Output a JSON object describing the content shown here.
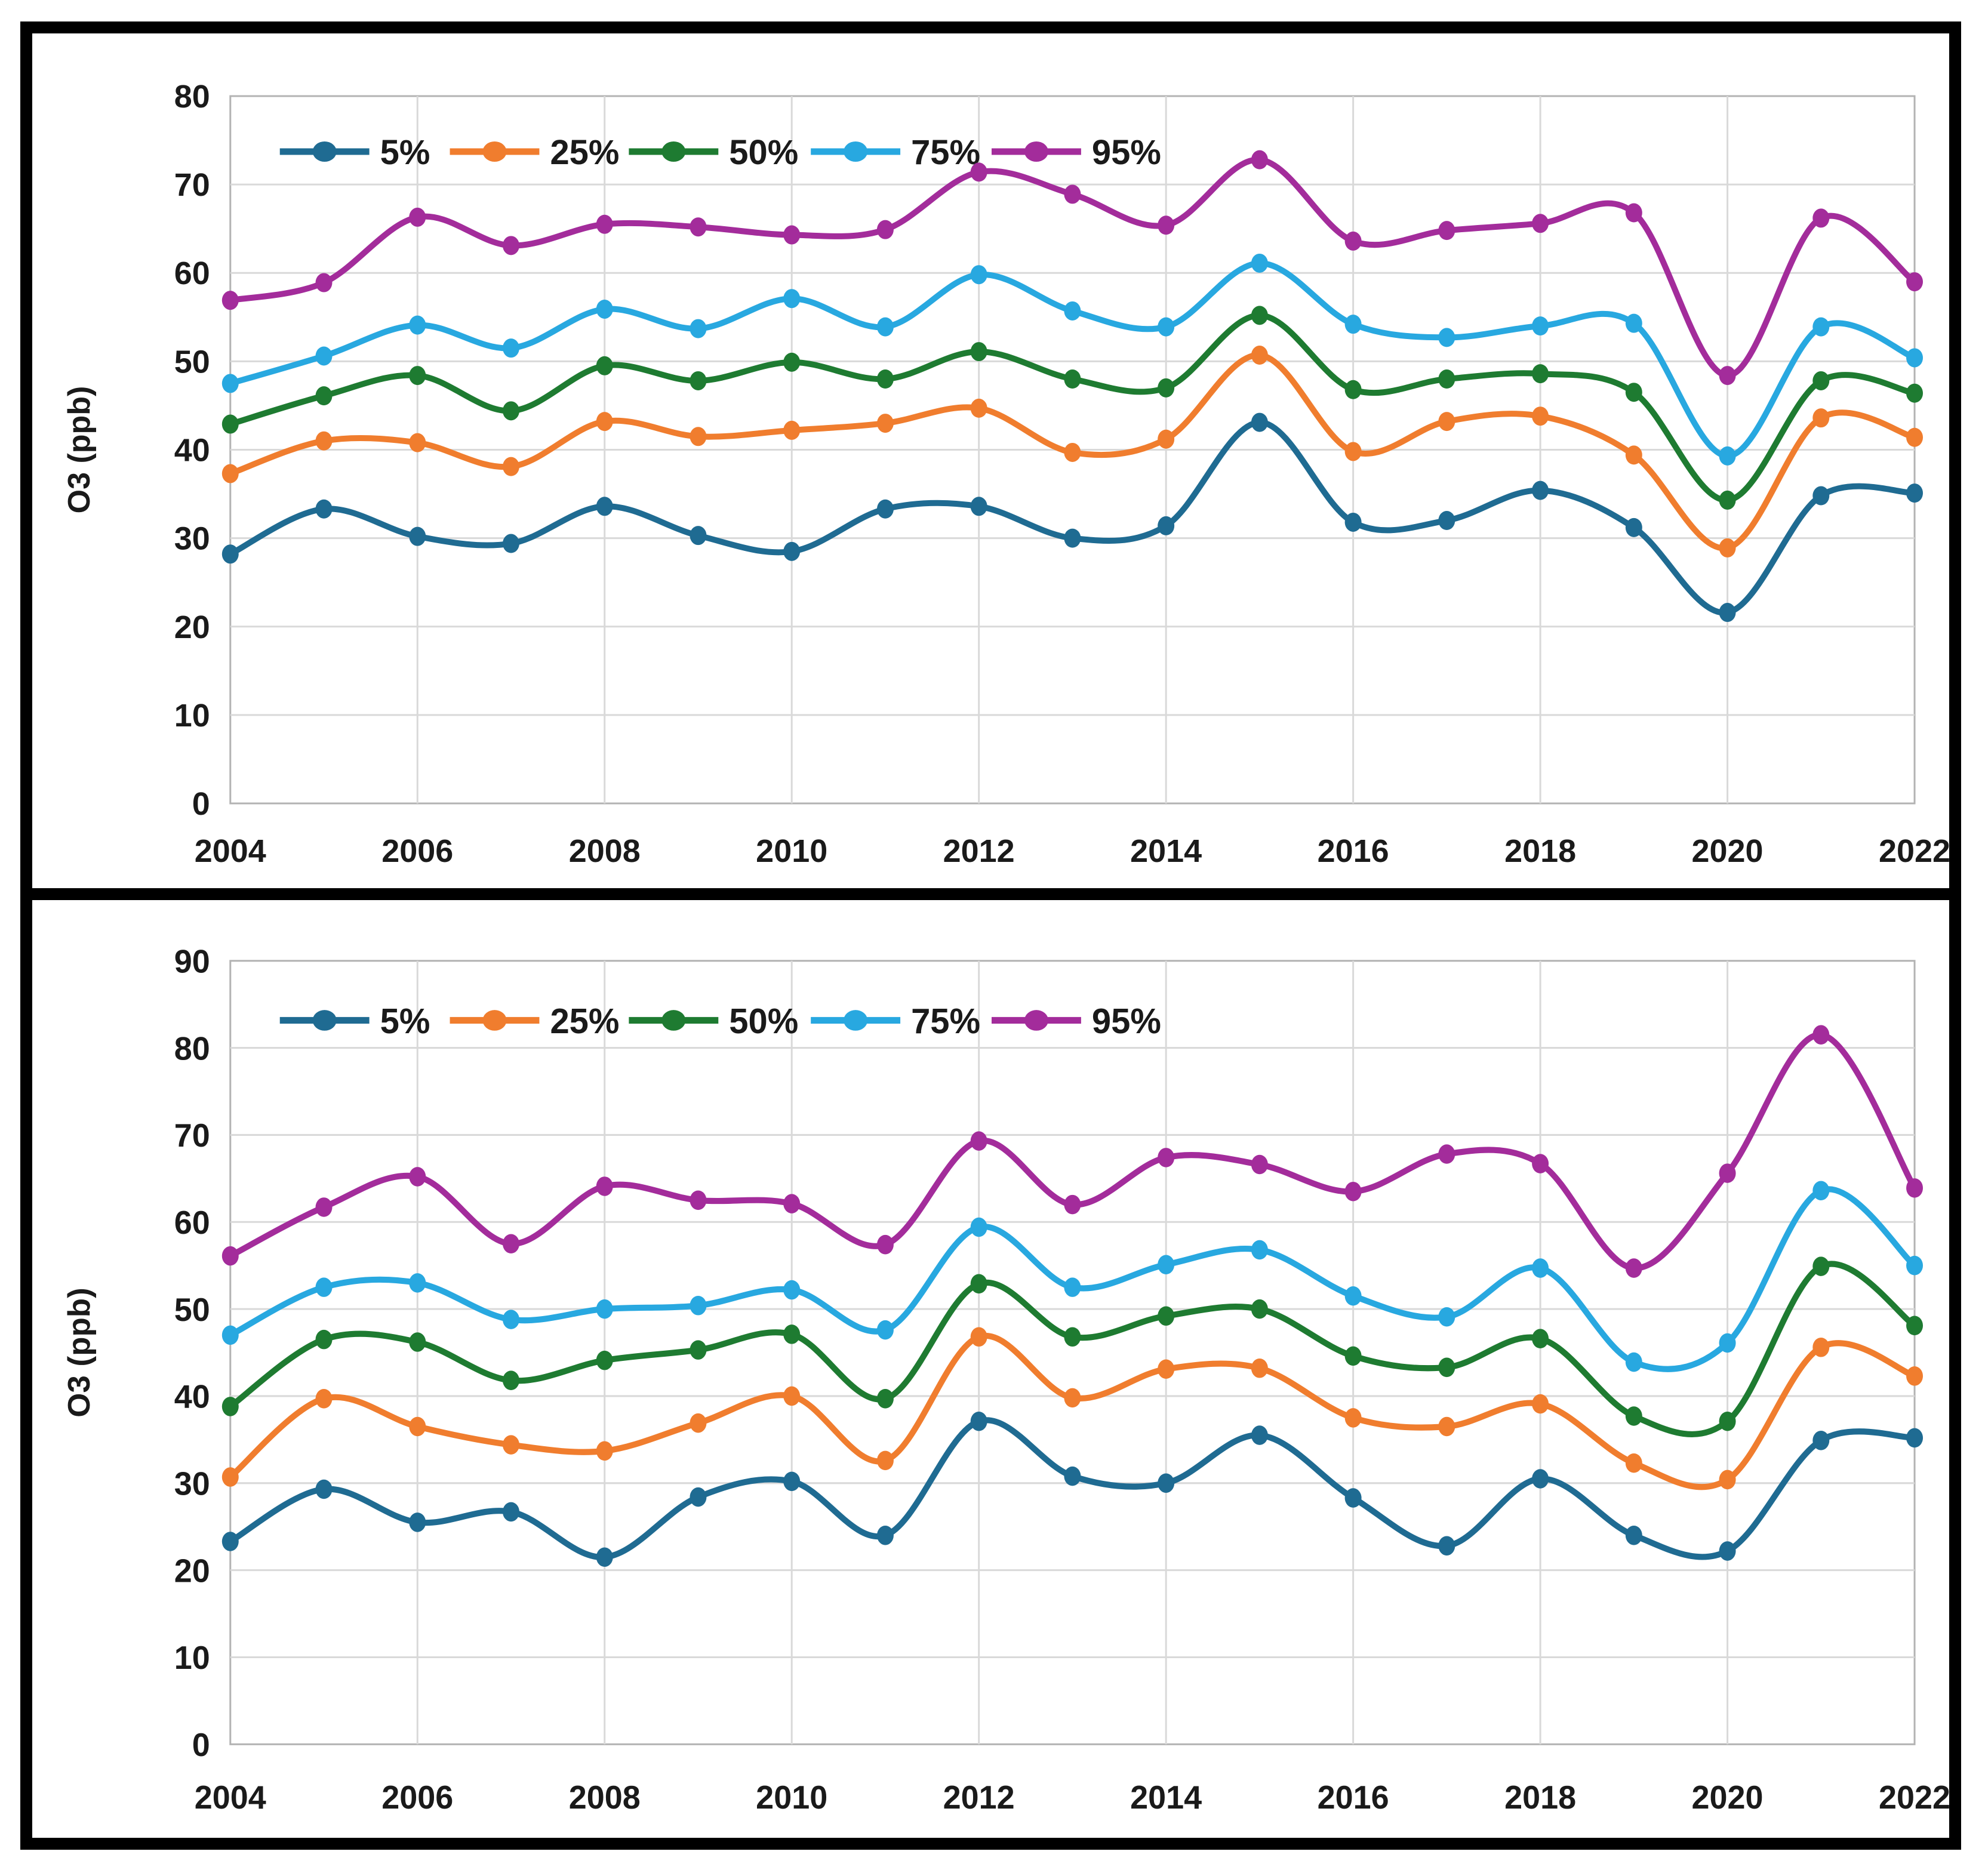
{
  "frame": {
    "border_color": "#000000",
    "background": "#ffffff",
    "gridline_color": "#d9d9d9",
    "plot_border_color": "#b3b3b3",
    "text_color": "#1a1a1a"
  },
  "chart_data": [
    {
      "id": "top",
      "type": "line",
      "title": "",
      "xlabel": "",
      "ylabel": "O3 (ppb)",
      "ylim": [
        0,
        80
      ],
      "ytick_step": 10,
      "yticks": [
        0,
        10,
        20,
        30,
        40,
        50,
        60,
        70,
        80
      ],
      "grid": true,
      "legend_position": "top-left",
      "legend": [
        "5%",
        "25%",
        "50%",
        "75%",
        "95%"
      ],
      "x": [
        2004,
        2005,
        2006,
        2007,
        2008,
        2009,
        2010,
        2011,
        2012,
        2013,
        2014,
        2015,
        2016,
        2017,
        2018,
        2019,
        2020,
        2021,
        2022
      ],
      "xticks": [
        2004,
        2006,
        2008,
        2010,
        2012,
        2014,
        2016,
        2018,
        2020,
        2022
      ],
      "series": [
        {
          "name": "5%",
          "color": "#1F6B92",
          "values": [
            28.2,
            33.3,
            30.2,
            29.4,
            33.6,
            30.3,
            28.5,
            33.3,
            33.6,
            30.0,
            31.4,
            43.1,
            31.8,
            32.0,
            35.4,
            31.2,
            21.6,
            34.8,
            35.1
          ]
        },
        {
          "name": "25%",
          "color": "#F07D2E",
          "values": [
            37.3,
            41.0,
            40.8,
            38.1,
            43.2,
            41.5,
            42.2,
            43.0,
            44.7,
            39.7,
            41.2,
            50.7,
            39.8,
            43.2,
            43.8,
            39.4,
            28.9,
            43.6,
            41.4
          ]
        },
        {
          "name": "50%",
          "color": "#1E7B31",
          "values": [
            42.9,
            46.1,
            48.4,
            44.4,
            49.5,
            47.8,
            49.9,
            48.0,
            51.1,
            48.0,
            47.0,
            55.2,
            46.8,
            48.0,
            48.6,
            46.5,
            34.3,
            47.8,
            46.4
          ]
        },
        {
          "name": "75%",
          "color": "#28A8E0",
          "values": [
            47.5,
            50.6,
            54.1,
            51.5,
            55.9,
            53.7,
            57.1,
            53.9,
            59.8,
            55.7,
            53.9,
            61.1,
            54.2,
            52.7,
            54.0,
            54.3,
            39.3,
            53.9,
            50.4
          ]
        },
        {
          "name": "95%",
          "color": "#A32C9B",
          "values": [
            56.9,
            58.9,
            66.3,
            63.1,
            65.5,
            65.2,
            64.3,
            64.9,
            71.4,
            68.9,
            65.4,
            72.8,
            63.6,
            64.8,
            65.6,
            66.8,
            48.4,
            66.2,
            59.0
          ]
        }
      ]
    },
    {
      "id": "bottom",
      "type": "line",
      "title": "",
      "xlabel": "",
      "ylabel": "O3 (ppb)",
      "ylim": [
        0,
        90
      ],
      "ytick_step": 10,
      "yticks": [
        0,
        10,
        20,
        30,
        40,
        50,
        60,
        70,
        80,
        90
      ],
      "grid": true,
      "legend_position": "top-left",
      "legend": [
        "5%",
        "25%",
        "50%",
        "75%",
        "95%"
      ],
      "x": [
        2004,
        2005,
        2006,
        2007,
        2008,
        2009,
        2010,
        2011,
        2012,
        2013,
        2014,
        2015,
        2016,
        2017,
        2018,
        2019,
        2020,
        2021,
        2022
      ],
      "xticks": [
        2004,
        2006,
        2008,
        2010,
        2012,
        2014,
        2016,
        2018,
        2020,
        2022
      ],
      "series": [
        {
          "name": "5%",
          "color": "#1F6B92",
          "values": [
            23.3,
            29.3,
            25.5,
            26.7,
            21.5,
            28.4,
            30.2,
            24.0,
            37.1,
            30.8,
            30.0,
            35.5,
            28.3,
            22.8,
            30.5,
            24.0,
            22.2,
            34.9,
            35.2
          ]
        },
        {
          "name": "25%",
          "color": "#F07D2E",
          "values": [
            30.7,
            39.7,
            36.5,
            34.4,
            33.7,
            36.9,
            40.0,
            32.6,
            46.8,
            39.8,
            43.1,
            43.2,
            37.5,
            36.5,
            39.1,
            32.3,
            30.4,
            45.6,
            42.3
          ]
        },
        {
          "name": "50%",
          "color": "#1E7B31",
          "values": [
            38.8,
            46.5,
            46.2,
            41.8,
            44.1,
            45.3,
            47.1,
            39.7,
            52.9,
            46.8,
            49.2,
            50.0,
            44.6,
            43.3,
            46.6,
            37.7,
            37.1,
            54.9,
            48.1
          ]
        },
        {
          "name": "75%",
          "color": "#28A8E0",
          "values": [
            47.0,
            52.5,
            53.0,
            48.8,
            50.0,
            50.4,
            52.2,
            47.6,
            59.4,
            52.5,
            55.1,
            56.8,
            51.5,
            49.1,
            54.7,
            43.9,
            46.1,
            63.6,
            55.0
          ]
        },
        {
          "name": "95%",
          "color": "#A32C9B",
          "values": [
            56.1,
            61.7,
            65.2,
            57.5,
            64.1,
            62.5,
            62.1,
            57.4,
            69.3,
            62.0,
            67.4,
            66.6,
            63.5,
            67.8,
            66.7,
            54.7,
            65.6,
            81.5,
            63.9
          ]
        }
      ]
    }
  ]
}
